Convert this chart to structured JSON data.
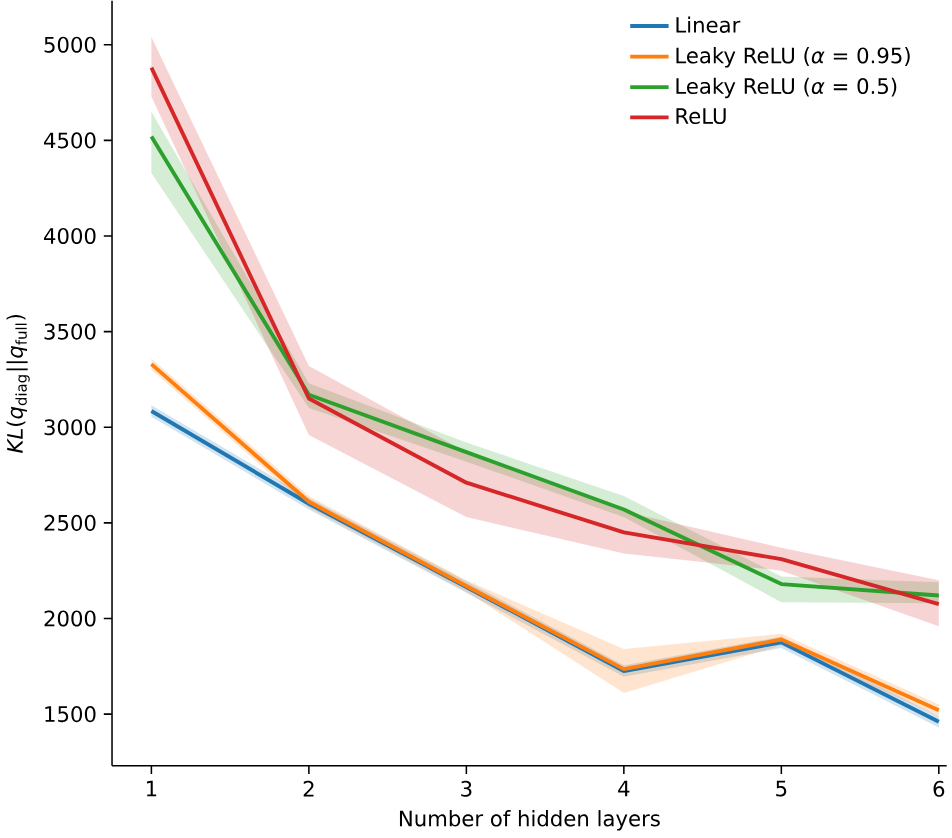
{
  "chart_data": {
    "type": "line",
    "xlabel": "Number of hidden layers",
    "ylabel": "*KL*(*q*$_{diag}$||*q*$_{full}$)",
    "x": [
      1,
      2,
      3,
      4,
      5,
      6
    ],
    "xlim": [
      0.75,
      6.05
    ],
    "xticks": [
      1,
      2,
      3,
      4,
      5,
      6
    ],
    "ylim": [
      1230,
      5230
    ],
    "yticks": [
      1500,
      2000,
      2500,
      3000,
      3500,
      4000,
      4500,
      5000
    ],
    "legend": "top right",
    "grid": false,
    "marker": "none",
    "line_style": "solid",
    "series": [
      {
        "name": "Linear",
        "color": "#1f77b4",
        "values": [
          3085,
          2600,
          2165,
          1725,
          1875,
          1460
        ],
        "lower": [
          3055,
          2570,
          2135,
          1695,
          1845,
          1430
        ],
        "upper": [
          3115,
          2630,
          2195,
          1755,
          1905,
          1490
        ]
      },
      {
        "name": "Leaky ReLU (*α* = 0.95)",
        "color": "#ff7f0e",
        "values": [
          3330,
          2610,
          2170,
          1735,
          1890,
          1520
        ],
        "lower": [
          3300,
          2580,
          2140,
          1610,
          1860,
          1490
        ],
        "upper": [
          3360,
          2640,
          2200,
          1840,
          1920,
          1550
        ]
      },
      {
        "name": "Leaky ReLU (*α* = 0.5)",
        "color": "#2ca02c",
        "values": [
          4520,
          3170,
          2870,
          2570,
          2180,
          2120
        ],
        "lower": [
          4330,
          3100,
          2820,
          2530,
          2085,
          2080
        ],
        "upper": [
          4650,
          3230,
          2920,
          2640,
          2220,
          2190
        ]
      },
      {
        "name": "ReLU",
        "color": "#d62728",
        "values": [
          4880,
          3150,
          2710,
          2450,
          2310,
          2075
        ],
        "lower": [
          4730,
          2960,
          2530,
          2340,
          2250,
          1960
        ],
        "upper": [
          5040,
          3320,
          2870,
          2560,
          2370,
          2200
        ]
      }
    ]
  }
}
